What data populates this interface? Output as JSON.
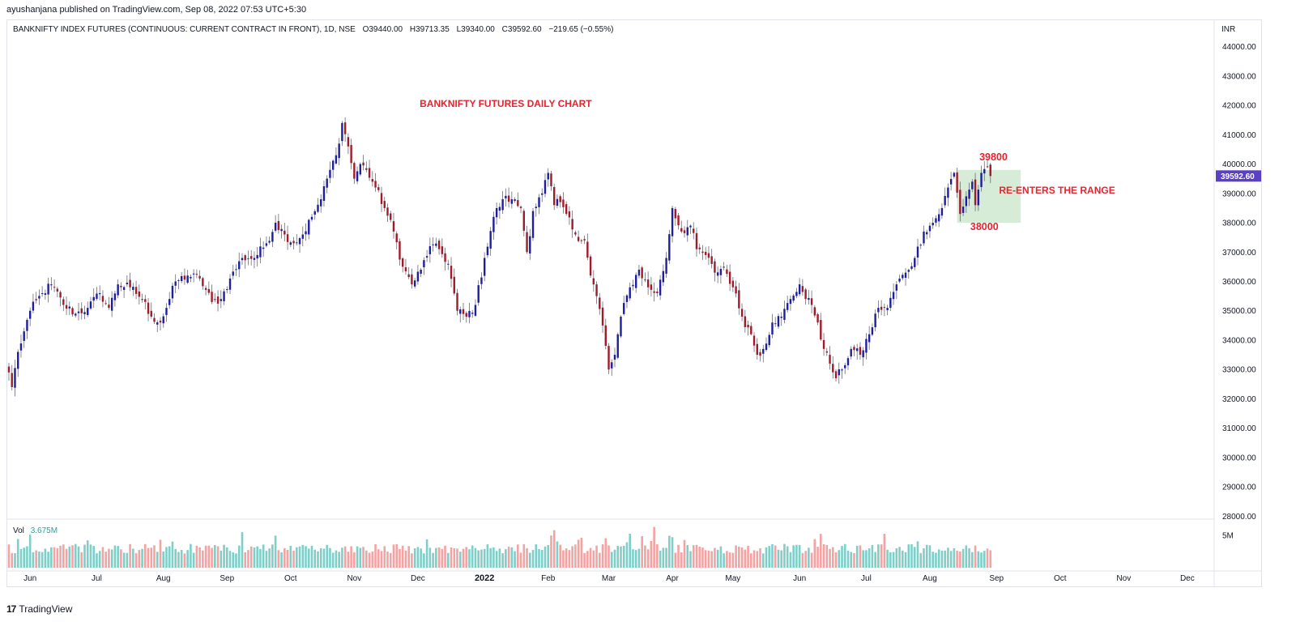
{
  "header": {
    "published": "ayushanjana published on TradingView.com, Sep 08, 2022 07:53 UTC+5:30"
  },
  "legend": {
    "symbol": "BANKNIFTY INDEX FUTURES (CONTINUOUS: CURRENT CONTRACT IN FRONT), 1D, NSE",
    "open": "O39440.00",
    "high": "H39713.35",
    "low": "L39340.00",
    "close": "C39592.60",
    "change": "−219.65 (−0.55%)"
  },
  "volume_legend": {
    "label": "Vol",
    "value": "3.675M"
  },
  "footer": {
    "brand": "TradingView"
  },
  "colors": {
    "bull": "#1e1e9e",
    "bear": "#a01b2a",
    "vol_up": "#7fcfc8",
    "vol_down": "#f4a3a3",
    "annotation": "#e8232e",
    "range_box": "#c8e6c9",
    "price_tag": "#5b3fc4"
  },
  "chart_data": {
    "type": "candlestick",
    "currency": "INR",
    "title": "",
    "y_ticks": [
      28000,
      29000,
      30000,
      31000,
      32000,
      33000,
      34000,
      35000,
      36000,
      37000,
      38000,
      39000,
      40000,
      41000,
      42000,
      43000,
      44000
    ],
    "ylim": [
      27900,
      44900
    ],
    "x_ticks": [
      {
        "label": "Jun",
        "index": 7
      },
      {
        "label": "Jul",
        "index": 29
      },
      {
        "label": "Aug",
        "index": 51
      },
      {
        "label": "Sep",
        "index": 72
      },
      {
        "label": "Oct",
        "index": 93
      },
      {
        "label": "Nov",
        "index": 114
      },
      {
        "label": "Dec",
        "index": 135
      },
      {
        "label": "2022",
        "index": 157
      },
      {
        "label": "Feb",
        "index": 178
      },
      {
        "label": "Mar",
        "index": 198
      },
      {
        "label": "Apr",
        "index": 219
      },
      {
        "label": "May",
        "index": 239
      },
      {
        "label": "Jun",
        "index": 261
      },
      {
        "label": "Jul",
        "index": 283
      },
      {
        "label": "Aug",
        "index": 304
      },
      {
        "label": "Sep",
        "index": 326
      },
      {
        "label": "Oct",
        "index": 347
      },
      {
        "label": "Nov",
        "index": 368
      },
      {
        "label": "Dec",
        "index": 389
      }
    ],
    "last_price": "39592.60",
    "volume_axis_label": "5M",
    "volume_axis_value": 5000000,
    "volume_max": 7000000,
    "anchors": [
      {
        "i": 0,
        "p": 32900
      },
      {
        "i": 1,
        "p": 32400
      },
      {
        "i": 3,
        "p": 33600
      },
      {
        "i": 5,
        "p": 34300
      },
      {
        "i": 7,
        "p": 35000
      },
      {
        "i": 11,
        "p": 35600
      },
      {
        "i": 14,
        "p": 35900
      },
      {
        "i": 18,
        "p": 35200
      },
      {
        "i": 22,
        "p": 34900
      },
      {
        "i": 26,
        "p": 35100
      },
      {
        "i": 30,
        "p": 35600
      },
      {
        "i": 33,
        "p": 35100
      },
      {
        "i": 36,
        "p": 35900
      },
      {
        "i": 40,
        "p": 35800
      },
      {
        "i": 44,
        "p": 35400
      },
      {
        "i": 47,
        "p": 34800
      },
      {
        "i": 50,
        "p": 34600
      },
      {
        "i": 52,
        "p": 35100
      },
      {
        "i": 55,
        "p": 36000
      },
      {
        "i": 59,
        "p": 36200
      },
      {
        "i": 63,
        "p": 36100
      },
      {
        "i": 67,
        "p": 35300
      },
      {
        "i": 70,
        "p": 35400
      },
      {
        "i": 73,
        "p": 36100
      },
      {
        "i": 77,
        "p": 36800
      },
      {
        "i": 81,
        "p": 36800
      },
      {
        "i": 85,
        "p": 37300
      },
      {
        "i": 88,
        "p": 38000
      },
      {
        "i": 91,
        "p": 37600
      },
      {
        "i": 94,
        "p": 37300
      },
      {
        "i": 97,
        "p": 37600
      },
      {
        "i": 100,
        "p": 38200
      },
      {
        "i": 103,
        "p": 38800
      },
      {
        "i": 106,
        "p": 39800
      },
      {
        "i": 108,
        "p": 40300
      },
      {
        "i": 110,
        "p": 41400
      },
      {
        "i": 112,
        "p": 40600
      },
      {
        "i": 114,
        "p": 39500
      },
      {
        "i": 116,
        "p": 40000
      },
      {
        "i": 118,
        "p": 39800
      },
      {
        "i": 121,
        "p": 39200
      },
      {
        "i": 124,
        "p": 38500
      },
      {
        "i": 127,
        "p": 37700
      },
      {
        "i": 130,
        "p": 36500
      },
      {
        "i": 133,
        "p": 35900
      },
      {
        "i": 136,
        "p": 36400
      },
      {
        "i": 139,
        "p": 37200
      },
      {
        "i": 142,
        "p": 37100
      },
      {
        "i": 145,
        "p": 36600
      },
      {
        "i": 148,
        "p": 35000
      },
      {
        "i": 151,
        "p": 34800
      },
      {
        "i": 154,
        "p": 35200
      },
      {
        "i": 157,
        "p": 36800
      },
      {
        "i": 160,
        "p": 38200
      },
      {
        "i": 163,
        "p": 38800
      },
      {
        "i": 166,
        "p": 38800
      },
      {
        "i": 169,
        "p": 38500
      },
      {
        "i": 171,
        "p": 37000
      },
      {
        "i": 173,
        "p": 38400
      },
      {
        "i": 176,
        "p": 39000
      },
      {
        "i": 178,
        "p": 39700
      },
      {
        "i": 180,
        "p": 38600
      },
      {
        "i": 182,
        "p": 38700
      },
      {
        "i": 184,
        "p": 38300
      },
      {
        "i": 187,
        "p": 37600
      },
      {
        "i": 190,
        "p": 37400
      },
      {
        "i": 192,
        "p": 36200
      },
      {
        "i": 194,
        "p": 35500
      },
      {
        "i": 196,
        "p": 34500
      },
      {
        "i": 198,
        "p": 33000
      },
      {
        "i": 200,
        "p": 33500
      },
      {
        "i": 202,
        "p": 34800
      },
      {
        "i": 205,
        "p": 35800
      },
      {
        "i": 208,
        "p": 36400
      },
      {
        "i": 211,
        "p": 35800
      },
      {
        "i": 214,
        "p": 35600
      },
      {
        "i": 217,
        "p": 36800
      },
      {
        "i": 219,
        "p": 38500
      },
      {
        "i": 222,
        "p": 37700
      },
      {
        "i": 225,
        "p": 37900
      },
      {
        "i": 227,
        "p": 37100
      },
      {
        "i": 230,
        "p": 36900
      },
      {
        "i": 233,
        "p": 36300
      },
      {
        "i": 236,
        "p": 36500
      },
      {
        "i": 239,
        "p": 35800
      },
      {
        "i": 242,
        "p": 34800
      },
      {
        "i": 245,
        "p": 34200
      },
      {
        "i": 247,
        "p": 33500
      },
      {
        "i": 249,
        "p": 33700
      },
      {
        "i": 252,
        "p": 34600
      },
      {
        "i": 255,
        "p": 34800
      },
      {
        "i": 258,
        "p": 35400
      },
      {
        "i": 261,
        "p": 35900
      },
      {
        "i": 263,
        "p": 35400
      },
      {
        "i": 265,
        "p": 35200
      },
      {
        "i": 267,
        "p": 34600
      },
      {
        "i": 269,
        "p": 33700
      },
      {
        "i": 271,
        "p": 33200
      },
      {
        "i": 273,
        "p": 32700
      },
      {
        "i": 275,
        "p": 33000
      },
      {
        "i": 278,
        "p": 33700
      },
      {
        "i": 281,
        "p": 33500
      },
      {
        "i": 284,
        "p": 34200
      },
      {
        "i": 287,
        "p": 35100
      },
      {
        "i": 290,
        "p": 35100
      },
      {
        "i": 293,
        "p": 35900
      },
      {
        "i": 296,
        "p": 36300
      },
      {
        "i": 299,
        "p": 36800
      },
      {
        "i": 302,
        "p": 37700
      },
      {
        "i": 305,
        "p": 38000
      },
      {
        "i": 308,
        "p": 38500
      },
      {
        "i": 310,
        "p": 39200
      },
      {
        "i": 312,
        "p": 39700
      },
      {
        "i": 314,
        "p": 38300
      },
      {
        "i": 316,
        "p": 38900
      },
      {
        "i": 318,
        "p": 39400
      },
      {
        "i": 319,
        "p": 38600
      },
      {
        "i": 321,
        "p": 39700
      },
      {
        "i": 323,
        "p": 39900
      },
      {
        "i": 324,
        "p": 39592.6
      }
    ],
    "range_box": {
      "from_index": 313,
      "to_index": 334,
      "high": 39800,
      "low": 38000
    },
    "annotations": [
      {
        "text": "BANKNIFTY FUTURES DAILY CHART",
        "index": 164,
        "price": 41950
      },
      {
        "text": "39800",
        "index": 325,
        "price": 40120
      },
      {
        "text": "38000",
        "index": 322,
        "price": 37750
      },
      {
        "text": "RE-ENTERS THE RANGE",
        "index": 346,
        "price": 39000
      }
    ]
  }
}
